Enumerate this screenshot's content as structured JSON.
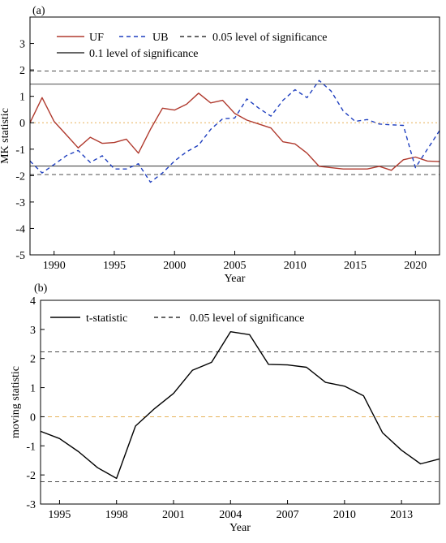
{
  "chart_data": [
    {
      "type": "line",
      "panel_label": "(a)",
      "xlabel": "Year",
      "ylabel": "MK statistic",
      "xlim": [
        1988,
        2022
      ],
      "ylim": [
        -5,
        4
      ],
      "xticks": [
        1990,
        1995,
        2000,
        2005,
        2010,
        2015,
        2020
      ],
      "yticks": [
        -5,
        -4,
        -3,
        -2,
        -1,
        0,
        1,
        2,
        3
      ],
      "x": [
        1988,
        1989,
        1990,
        1991,
        1992,
        1993,
        1994,
        1995,
        1996,
        1997,
        1998,
        1999,
        2000,
        2001,
        2002,
        2003,
        2004,
        2005,
        2006,
        2007,
        2008,
        2009,
        2010,
        2011,
        2012,
        2013,
        2014,
        2015,
        2016,
        2017,
        2018,
        2019,
        2020,
        2021,
        2022
      ],
      "series": [
        {
          "name": "UF",
          "color": "#b03a2e",
          "style": "solid",
          "values": [
            0.0,
            0.95,
            0.05,
            -0.45,
            -0.95,
            -0.55,
            -0.78,
            -0.75,
            -0.62,
            -1.15,
            -0.25,
            0.55,
            0.48,
            0.7,
            1.12,
            0.75,
            0.85,
            0.35,
            0.1,
            -0.05,
            -0.2,
            -0.72,
            -0.8,
            -1.15,
            -1.65,
            -1.7,
            -1.75,
            -1.75,
            -1.75,
            -1.65,
            -1.8,
            -1.4,
            -1.3,
            -1.45,
            -1.47
          ]
        },
        {
          "name": "UB",
          "color": "#1f3fbf",
          "style": "dashed",
          "values": [
            -1.45,
            -1.9,
            -1.58,
            -1.25,
            -1.05,
            -1.5,
            -1.25,
            -1.75,
            -1.75,
            -1.55,
            -2.25,
            -1.9,
            -1.45,
            -1.1,
            -0.85,
            -0.25,
            0.15,
            0.18,
            0.9,
            0.55,
            0.25,
            0.85,
            1.25,
            0.95,
            1.6,
            1.2,
            0.45,
            0.05,
            0.12,
            -0.05,
            -0.08,
            -0.1,
            -1.7,
            -1.0,
            -0.3
          ]
        }
      ],
      "reference_lines": [
        {
          "name": "0.05 level of significance",
          "values": [
            1.96,
            -1.96
          ],
          "style": "dashed",
          "color": "#333333"
        },
        {
          "name": "0.1 level of significance",
          "values": [
            1.46,
            -1.64
          ],
          "style": "solid",
          "color": "#333333"
        },
        {
          "name": "",
          "values": [
            0
          ],
          "style": "dotted",
          "color": "#e3a640"
        }
      ],
      "legend": [
        "UF",
        "UB",
        "0.05 level of significance",
        "0.1 level of significance"
      ],
      "legend_placement": "top"
    },
    {
      "type": "line",
      "panel_label": "(b)",
      "xlabel": "Year",
      "ylabel": "moving statistic",
      "xlim": [
        1994,
        2015
      ],
      "ylim": [
        -3,
        4
      ],
      "xticks": [
        1995,
        1998,
        2001,
        2004,
        2007,
        2010,
        2013
      ],
      "yticks": [
        -3,
        -2,
        -1,
        0,
        1,
        2,
        3,
        4
      ],
      "x": [
        1994,
        1995,
        1996,
        1997,
        1998,
        1999,
        2000,
        2001,
        2002,
        2003,
        2004,
        2005,
        2006,
        2007,
        2008,
        2009,
        2010,
        2011,
        2012,
        2013,
        2014,
        2015
      ],
      "series": [
        {
          "name": "t-statistic",
          "color": "#000000",
          "style": "solid",
          "values": [
            -0.5,
            -0.75,
            -1.2,
            -1.75,
            -2.12,
            -0.32,
            0.28,
            0.8,
            1.6,
            1.87,
            2.92,
            2.82,
            1.8,
            1.78,
            1.7,
            1.18,
            1.05,
            0.72,
            -0.55,
            -1.15,
            -1.62,
            -1.45
          ]
        }
      ],
      "reference_lines": [
        {
          "name": "0.05 level of significance",
          "values": [
            2.23,
            -2.23
          ],
          "style": "dashed",
          "color": "#333333"
        },
        {
          "name": "",
          "values": [
            0
          ],
          "style": "dashed",
          "color": "#e3a640"
        }
      ],
      "legend": [
        "t-statistic",
        "0.05 level of significance"
      ],
      "legend_placement": "top-left"
    }
  ]
}
